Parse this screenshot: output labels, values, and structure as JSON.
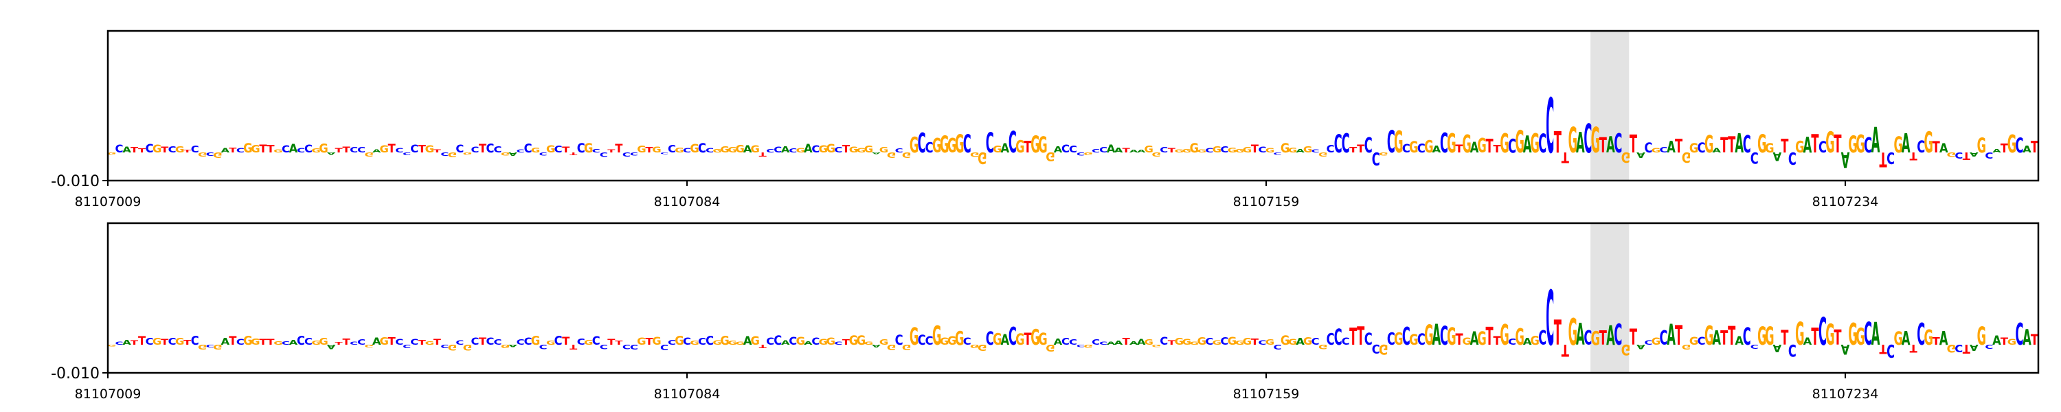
{
  "chart_data": [
    {
      "type": "sequence-logo",
      "title": "",
      "xlabel": "",
      "ylabel": "",
      "x_range": [
        81107009,
        81107259
      ],
      "x_ticks": [
        81107009,
        81107084,
        81107159,
        81107234
      ],
      "x_tick_labels": [
        "81107009",
        "81107084",
        "81107159",
        "81107234"
      ],
      "y_ticks": [
        -0.01
      ],
      "y_tick_labels": [
        "-0.010"
      ],
      "highlight": {
        "start": 81107201,
        "end": 81107206
      },
      "sequence": "GCATTCGTCGTCGCGATCGGTTGCACCGGATTCCGAGTCCCTGTCGCGCTCCGACCGCGCTTCGCCTTCCGTGCCGCGCCGGGGAGTCCACGACGGCTGGGAGGCGGCCGGGGCGGCGACGTGGGACCCGCCAATAAGGCTGGGGCGCGGGTCGCGGAGCGCCCTTCCGCGCGCGACGTGAGTTGCGAGCCTTGACGTACGTACGCATGGCGATTACCGGATCGATCGTAGGCATCGATCGTAGCTAGCATGCAT",
      "series": [
        {
          "name": "",
          "heights": []
        },
        {
          "name": "",
          "heights": []
        }
      ],
      "colors": {
        "A": "#008000",
        "C": "#0000ff",
        "G": "#ffa500",
        "T": "#ff0000"
      },
      "highlight_color": "#e3e3e3",
      "grid": false,
      "legend": "none"
    }
  ]
}
